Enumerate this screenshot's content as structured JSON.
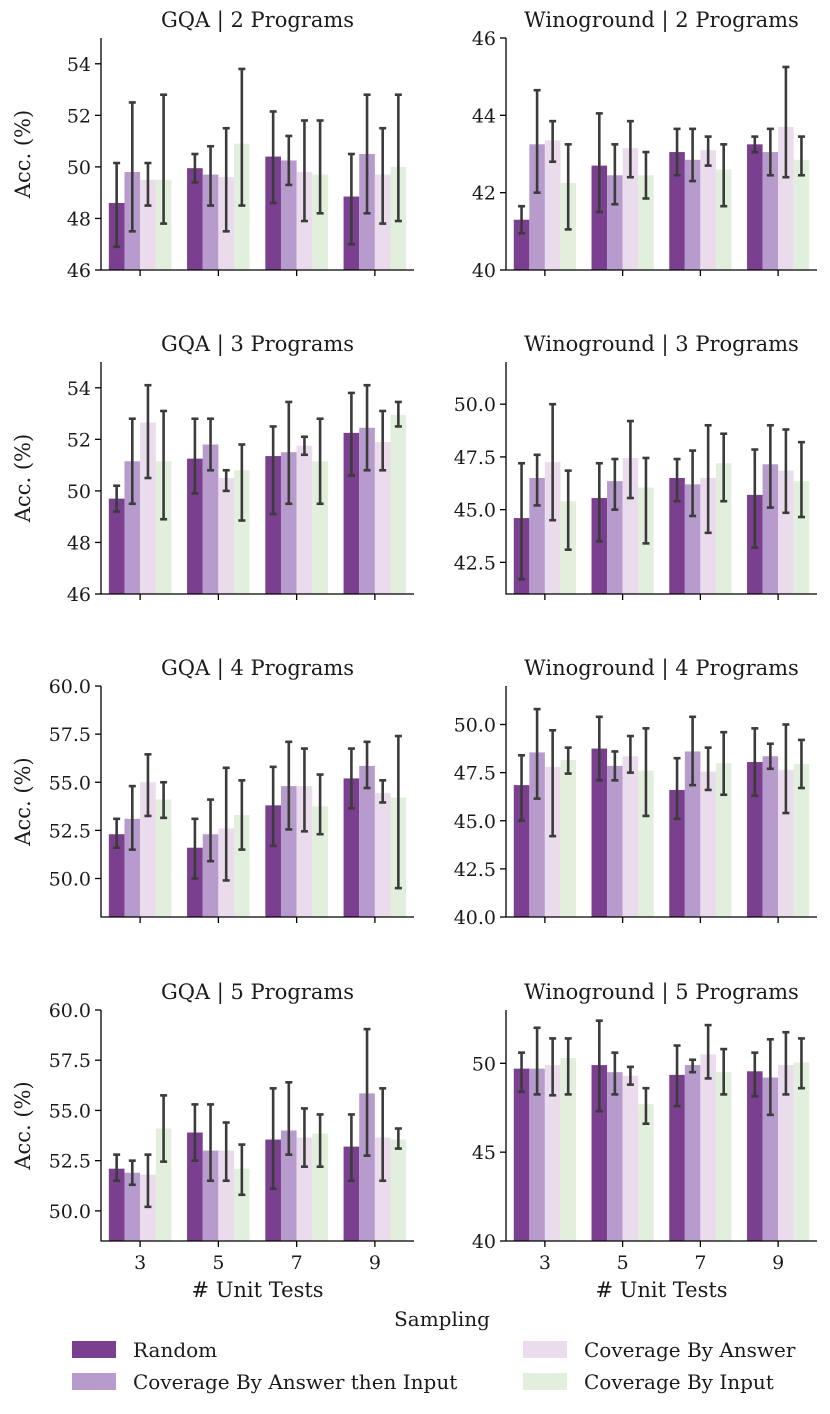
{
  "chart_data": [
    {
      "type": "bar",
      "title": "GQA | 2 Programs",
      "xlabel": "",
      "ylabel": "Acc. (%)",
      "ylim": [
        46,
        55
      ],
      "yticks": [
        46,
        48,
        50,
        52,
        54
      ],
      "categories": [
        "3",
        "5",
        "7",
        "9"
      ],
      "series": [
        {
          "name": "Random",
          "values": [
            48.6,
            49.95,
            50.4,
            48.85
          ],
          "err_low": [
            46.9,
            49.4,
            48.6,
            47.0
          ],
          "err_high": [
            50.15,
            50.5,
            52.15,
            50.5
          ]
        },
        {
          "name": "Coverage By Answer then Input",
          "values": [
            49.8,
            49.7,
            50.25,
            50.5
          ],
          "err_low": [
            47.5,
            48.5,
            49.3,
            48.2
          ],
          "err_high": [
            52.5,
            50.8,
            51.2,
            52.8
          ]
        },
        {
          "name": "Coverage By Answer",
          "values": [
            49.5,
            49.6,
            49.8,
            49.7
          ],
          "err_low": [
            48.5,
            47.5,
            47.9,
            47.8
          ],
          "err_high": [
            50.15,
            51.5,
            51.8,
            51.5
          ]
        },
        {
          "name": "Coverage By Input",
          "values": [
            49.5,
            50.9,
            49.7,
            50.0
          ],
          "err_low": [
            47.8,
            48.5,
            48.2,
            47.9
          ],
          "err_high": [
            52.8,
            53.8,
            51.8,
            52.8
          ]
        }
      ]
    },
    {
      "type": "bar",
      "title": "Winoground | 2 Programs",
      "xlabel": "",
      "ylabel": "",
      "ylim": [
        40,
        46
      ],
      "yticks": [
        40,
        42,
        44,
        46
      ],
      "categories": [
        "3",
        "5",
        "7",
        "9"
      ],
      "series": [
        {
          "name": "Random",
          "values": [
            41.3,
            42.7,
            43.05,
            43.25
          ],
          "err_low": [
            40.95,
            41.5,
            42.45,
            43.05
          ],
          "err_high": [
            41.65,
            44.05,
            43.65,
            43.45
          ]
        },
        {
          "name": "Coverage By Answer then Input",
          "values": [
            43.25,
            42.45,
            42.85,
            43.05
          ],
          "err_low": [
            42.0,
            41.7,
            42.3,
            42.45
          ],
          "err_high": [
            44.65,
            43.25,
            43.65,
            43.65
          ]
        },
        {
          "name": "Coverage By Answer",
          "values": [
            43.35,
            43.15,
            43.1,
            43.7
          ],
          "err_low": [
            42.8,
            42.4,
            42.7,
            42.4
          ],
          "err_high": [
            43.85,
            43.85,
            43.45,
            45.25
          ]
        },
        {
          "name": "Coverage By Input",
          "values": [
            42.25,
            42.45,
            42.6,
            42.85
          ],
          "err_low": [
            41.05,
            41.85,
            41.65,
            42.45
          ],
          "err_high": [
            43.25,
            43.05,
            43.25,
            43.45
          ]
        }
      ]
    },
    {
      "type": "bar",
      "title": "GQA | 3 Programs",
      "xlabel": "",
      "ylabel": "Acc. (%)",
      "ylim": [
        46,
        55
      ],
      "yticks": [
        46,
        48,
        50,
        52,
        54
      ],
      "categories": [
        "3",
        "5",
        "7",
        "9"
      ],
      "series": [
        {
          "name": "Random",
          "values": [
            49.7,
            51.25,
            51.35,
            52.25
          ],
          "err_low": [
            49.2,
            49.9,
            49.1,
            50.6
          ],
          "err_high": [
            50.2,
            52.8,
            52.5,
            53.8
          ]
        },
        {
          "name": "Coverage By Answer then Input",
          "values": [
            51.15,
            51.8,
            51.5,
            52.45
          ],
          "err_low": [
            49.5,
            50.8,
            49.5,
            50.8
          ],
          "err_high": [
            52.8,
            52.8,
            53.45,
            54.1
          ]
        },
        {
          "name": "Coverage By Answer",
          "values": [
            52.65,
            50.5,
            51.75,
            51.9
          ],
          "err_low": [
            50.5,
            50.0,
            51.4,
            50.8
          ],
          "err_high": [
            54.1,
            50.8,
            52.1,
            53.1
          ]
        },
        {
          "name": "Coverage By Input",
          "values": [
            51.15,
            50.8,
            51.15,
            52.95
          ],
          "err_low": [
            48.9,
            48.85,
            49.5,
            52.5
          ],
          "err_high": [
            53.1,
            51.8,
            52.8,
            53.45
          ]
        }
      ]
    },
    {
      "type": "bar",
      "title": "Winoground | 3 Programs",
      "xlabel": "",
      "ylabel": "",
      "ylim": [
        41,
        52
      ],
      "yticks": [
        42.5,
        45.0,
        47.5,
        50.0
      ],
      "categories": [
        "3",
        "5",
        "7",
        "9"
      ],
      "series": [
        {
          "name": "Random",
          "values": [
            44.6,
            45.55,
            46.5,
            45.7
          ],
          "err_low": [
            41.7,
            43.5,
            45.4,
            43.2
          ],
          "err_high": [
            47.2,
            47.2,
            47.4,
            47.85
          ]
        },
        {
          "name": "Coverage By Answer then Input",
          "values": [
            46.5,
            46.35,
            46.2,
            47.15
          ],
          "err_low": [
            45.2,
            45.0,
            44.7,
            45.1
          ],
          "err_high": [
            47.6,
            47.4,
            47.8,
            49.0
          ]
        },
        {
          "name": "Coverage By Answer",
          "values": [
            47.25,
            47.45,
            46.5,
            46.85
          ],
          "err_low": [
            44.5,
            45.55,
            43.9,
            44.85
          ],
          "err_high": [
            50.0,
            49.2,
            49.0,
            48.8
          ]
        },
        {
          "name": "Coverage By Input",
          "values": [
            45.4,
            46.05,
            47.2,
            46.35
          ],
          "err_low": [
            43.1,
            43.4,
            45.4,
            44.65
          ],
          "err_high": [
            46.85,
            47.45,
            48.6,
            48.2
          ]
        }
      ]
    },
    {
      "type": "bar",
      "title": "GQA | 4 Programs",
      "xlabel": "",
      "ylabel": "Acc. (%)",
      "ylim": [
        48,
        60
      ],
      "yticks": [
        50.0,
        52.5,
        55.0,
        57.5,
        60.0
      ],
      "categories": [
        "3",
        "5",
        "7",
        "9"
      ],
      "series": [
        {
          "name": "Random",
          "values": [
            52.3,
            51.6,
            53.8,
            55.2
          ],
          "err_low": [
            51.6,
            50.0,
            51.7,
            53.65
          ],
          "err_high": [
            53.1,
            53.1,
            55.8,
            56.75
          ]
        },
        {
          "name": "Coverage By Answer then Input",
          "values": [
            53.1,
            52.3,
            54.8,
            55.85
          ],
          "err_low": [
            51.5,
            50.9,
            52.55,
            54.7
          ],
          "err_high": [
            54.8,
            54.1,
            57.1,
            57.1
          ]
        },
        {
          "name": "Coverage By Answer",
          "values": [
            55.0,
            52.6,
            54.8,
            54.45
          ],
          "err_low": [
            53.25,
            49.9,
            52.45,
            53.95
          ],
          "err_high": [
            56.45,
            55.75,
            56.75,
            55.1
          ]
        },
        {
          "name": "Coverage By Input",
          "values": [
            54.1,
            53.3,
            53.75,
            54.2
          ],
          "err_low": [
            53.15,
            51.5,
            52.3,
            49.5
          ],
          "err_high": [
            55.0,
            55.1,
            55.4,
            57.4
          ]
        }
      ]
    },
    {
      "type": "bar",
      "title": "Winoground | 4 Programs",
      "xlabel": "",
      "ylabel": "",
      "ylim": [
        40,
        52
      ],
      "yticks": [
        40.0,
        42.5,
        45.0,
        47.5,
        50.0
      ],
      "categories": [
        "3",
        "5",
        "7",
        "9"
      ],
      "series": [
        {
          "name": "Random",
          "values": [
            46.85,
            48.75,
            46.6,
            48.05
          ],
          "err_low": [
            45.0,
            47.1,
            45.1,
            46.3
          ],
          "err_high": [
            48.4,
            50.4,
            48.25,
            49.8
          ]
        },
        {
          "name": "Coverage By Answer then Input",
          "values": [
            48.55,
            47.85,
            48.6,
            48.35
          ],
          "err_low": [
            46.15,
            47.1,
            46.85,
            47.7
          ],
          "err_high": [
            50.8,
            48.6,
            50.4,
            49.0
          ]
        },
        {
          "name": "Coverage By Answer",
          "values": [
            47.8,
            48.35,
            47.55,
            47.65
          ],
          "err_low": [
            44.2,
            47.5,
            46.6,
            45.4
          ],
          "err_high": [
            49.7,
            49.4,
            48.8,
            50.0
          ]
        },
        {
          "name": "Coverage By Input",
          "values": [
            48.15,
            47.6,
            48.0,
            47.95
          ],
          "err_low": [
            47.45,
            45.25,
            46.35,
            46.7
          ],
          "err_high": [
            48.8,
            49.8,
            49.6,
            49.2
          ]
        }
      ]
    },
    {
      "type": "bar",
      "title": "GQA | 5 Programs",
      "xlabel": "# Unit Tests",
      "ylabel": "Acc. (%)",
      "ylim": [
        48.5,
        60
      ],
      "yticks": [
        50.0,
        52.5,
        55.0,
        57.5,
        60.0
      ],
      "categories": [
        "3",
        "5",
        "7",
        "9"
      ],
      "series": [
        {
          "name": "Random",
          "values": [
            52.1,
            53.9,
            53.55,
            53.2
          ],
          "err_low": [
            51.5,
            52.5,
            51.1,
            51.5
          ],
          "err_high": [
            52.8,
            55.3,
            56.1,
            54.8
          ]
        },
        {
          "name": "Coverage By Answer then Input",
          "values": [
            51.9,
            53.0,
            54.0,
            55.85
          ],
          "err_low": [
            51.3,
            51.5,
            52.8,
            52.75
          ],
          "err_high": [
            52.5,
            55.3,
            56.4,
            59.05
          ]
        },
        {
          "name": "Coverage By Answer",
          "values": [
            51.8,
            53.0,
            53.65,
            53.65
          ],
          "err_low": [
            50.2,
            51.5,
            52.2,
            51.5
          ],
          "err_high": [
            52.8,
            54.4,
            55.1,
            56.1
          ]
        },
        {
          "name": "Coverage By Input",
          "values": [
            54.1,
            52.1,
            53.85,
            53.55
          ],
          "err_low": [
            52.45,
            50.8,
            52.2,
            53.1
          ],
          "err_high": [
            55.75,
            53.3,
            54.8,
            54.1
          ]
        }
      ]
    },
    {
      "type": "bar",
      "title": "Winoground | 5 Programs",
      "xlabel": "# Unit Tests",
      "ylabel": "",
      "ylim": [
        40,
        53
      ],
      "yticks": [
        40,
        45,
        50
      ],
      "categories": [
        "3",
        "5",
        "7",
        "9"
      ],
      "series": [
        {
          "name": "Random",
          "values": [
            49.7,
            49.9,
            49.35,
            49.55
          ],
          "err_low": [
            48.4,
            47.3,
            47.6,
            48.15
          ],
          "err_high": [
            50.6,
            52.4,
            51.0,
            50.6
          ]
        },
        {
          "name": "Coverage By Answer then Input",
          "values": [
            49.7,
            49.5,
            49.9,
            49.2
          ],
          "err_low": [
            48.25,
            48.25,
            49.5,
            47.1
          ],
          "err_high": [
            52.0,
            50.6,
            50.2,
            51.35
          ]
        },
        {
          "name": "Coverage By Answer",
          "values": [
            49.9,
            49.3,
            50.5,
            49.9
          ],
          "err_low": [
            48.2,
            48.8,
            49.15,
            48.25
          ],
          "err_high": [
            51.4,
            49.8,
            52.15,
            51.75
          ]
        },
        {
          "name": "Coverage By Input",
          "values": [
            50.3,
            47.7,
            49.5,
            50.05
          ],
          "err_low": [
            48.25,
            46.6,
            48.25,
            48.6
          ],
          "err_high": [
            51.4,
            48.6,
            50.8,
            51.4
          ]
        }
      ]
    }
  ],
  "legend": {
    "title": "Sampling",
    "items": [
      {
        "label": "Random",
        "color": "#7b3f8f"
      },
      {
        "label": "Coverage By Answer then Input",
        "color": "#b79bcc"
      },
      {
        "label": "Coverage By Answer",
        "color": "#eadcec"
      },
      {
        "label": "Coverage By Input",
        "color": "#e1efdc"
      }
    ]
  },
  "colors": {
    "series": [
      "#7b3f8f",
      "#b79bcc",
      "#eadcec",
      "#e1efdc"
    ],
    "errorbar": "#3b3b3b",
    "axis": "#000000"
  }
}
